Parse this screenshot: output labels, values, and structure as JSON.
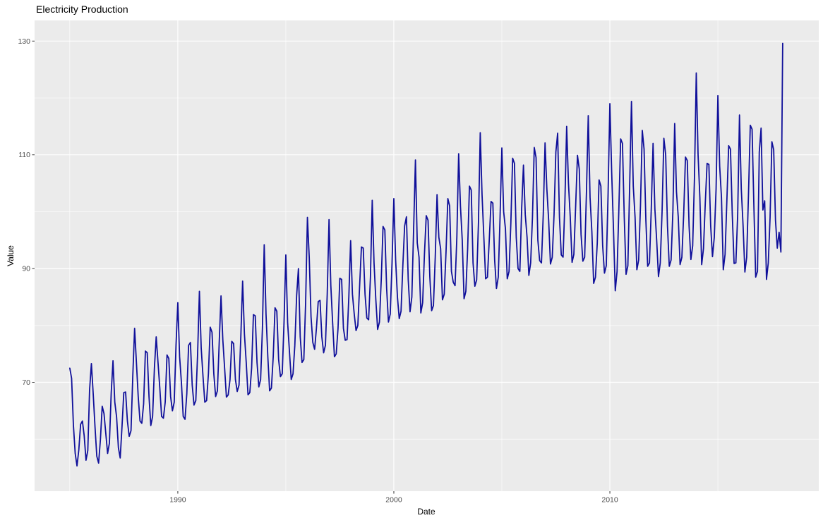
{
  "chart_data": {
    "type": "line",
    "title": "Electricity Production",
    "xlabel": "Date",
    "ylabel": "Value",
    "x_unit": "year (monthly points)",
    "x_start": "1985-01",
    "x_end": "2018-01",
    "xlim": [
      1983.37,
      2019.67
    ],
    "ylim": [
      50.86,
      133.63
    ],
    "x_tick_labels": [
      "1990",
      "2000",
      "2010"
    ],
    "x_major_breaks": [
      1990,
      2000,
      2010
    ],
    "x_minor_breaks": [
      1985,
      1995,
      2005,
      2015
    ],
    "y_tick_labels": [
      "70",
      "90",
      "110",
      "130"
    ],
    "y_major_breaks": [
      70,
      90,
      110,
      130
    ],
    "y_minor_breaks": [
      60,
      80,
      100,
      120
    ],
    "grid": "on",
    "legend": "none",
    "colors": {
      "line": "#10109A",
      "panel_background": "#EBEBEB",
      "gridline": "#FFFFFF",
      "tick_label": "#4D4D4D",
      "tick_mark": "#333333",
      "text": "#000000",
      "figure_background": "#FFFFFF"
    },
    "series": [
      {
        "name": "Value",
        "start_year": 1985,
        "months_per_step": 1,
        "values": [
          72.5,
          70.7,
          62.5,
          57.5,
          55.3,
          58.1,
          62.6,
          63.2,
          60.6,
          56.3,
          58.0,
          68.7,
          73.3,
          68.0,
          62.2,
          57.0,
          55.8,
          59.9,
          65.8,
          64.5,
          61.0,
          57.5,
          59.3,
          68.1,
          73.8,
          66.5,
          63.9,
          58.5,
          56.7,
          62.2,
          68.2,
          68.3,
          63.2,
          60.5,
          61.5,
          71.2,
          79.5,
          73.5,
          67.5,
          63.2,
          62.8,
          66.2,
          75.5,
          75.2,
          67.5,
          62.4,
          64.0,
          72.5,
          78.0,
          73.5,
          69.0,
          64.0,
          63.7,
          66.5,
          74.8,
          74.2,
          67.5,
          65.0,
          66.5,
          76.5,
          84.0,
          74.5,
          70.0,
          64.0,
          63.5,
          68.0,
          76.5,
          77.0,
          69.5,
          66.0,
          66.8,
          75.0,
          86.0,
          76.0,
          71.0,
          66.5,
          66.8,
          71.5,
          79.7,
          78.8,
          71.5,
          67.5,
          68.5,
          77.0,
          85.2,
          77.5,
          72.5,
          67.4,
          67.8,
          70.5,
          77.2,
          76.8,
          70.5,
          68.4,
          69.5,
          78.0,
          87.8,
          78.5,
          73.5,
          67.8,
          68.2,
          72.5,
          81.9,
          81.7,
          73.5,
          69.2,
          70.5,
          79.5,
          94.2,
          82.0,
          74.5,
          68.5,
          69.0,
          74.5,
          83.1,
          82.5,
          74.0,
          71.0,
          71.5,
          80.5,
          92.4,
          80.5,
          75.5,
          70.5,
          71.5,
          76.5,
          85.2,
          90.0,
          78.0,
          73.5,
          74.0,
          84.0,
          99.0,
          92.0,
          81.5,
          77.0,
          75.8,
          79.5,
          84.2,
          84.4,
          78.0,
          75.2,
          76.5,
          85.5,
          98.6,
          87.0,
          80.5,
          74.5,
          75.0,
          79.5,
          88.3,
          88.1,
          79.5,
          77.4,
          77.5,
          85.0,
          94.9,
          85.5,
          82.0,
          79.1,
          80.0,
          87.0,
          93.8,
          93.6,
          85.5,
          81.3,
          81.0,
          88.5,
          102.0,
          91.0,
          84.5,
          79.3,
          80.6,
          88.0,
          97.4,
          96.8,
          86.5,
          80.6,
          82.0,
          91.0,
          102.3,
          91.5,
          85.0,
          81.2,
          82.5,
          90.5,
          97.5,
          99.1,
          88.0,
          82.4,
          85.0,
          97.0,
          109.1,
          94.5,
          92.0,
          82.2,
          84.0,
          92.5,
          99.3,
          98.5,
          88.5,
          82.6,
          83.5,
          92.0,
          103.0,
          95.5,
          93.5,
          84.5,
          85.5,
          93.0,
          102.3,
          101.0,
          89.5,
          87.6,
          87.0,
          95.5,
          110.2,
          101.0,
          95.0,
          84.7,
          86.0,
          93.5,
          104.5,
          103.8,
          91.0,
          86.9,
          88.0,
          98.0,
          113.9,
          103.0,
          95.5,
          88.2,
          88.5,
          95.0,
          101.8,
          101.5,
          91.5,
          86.5,
          88.5,
          99.0,
          111.2,
          100.0,
          97.0,
          88.2,
          89.5,
          98.0,
          109.4,
          108.5,
          95.5,
          90.0,
          89.5,
          100.5,
          108.2,
          99.5,
          95.5,
          88.8,
          91.0,
          99.0,
          111.3,
          109.5,
          95.0,
          91.4,
          91.0,
          99.5,
          112.1,
          104.0,
          98.5,
          90.8,
          92.0,
          99.5,
          110.5,
          113.8,
          99.0,
          92.4,
          92.0,
          101.5,
          115.0,
          105.0,
          99.0,
          91.1,
          92.5,
          101.0,
          109.9,
          107.5,
          96.0,
          91.3,
          92.0,
          103.5,
          116.9,
          102.5,
          96.5,
          87.4,
          88.5,
          94.5,
          105.6,
          104.5,
          94.0,
          89.2,
          90.5,
          103.0,
          119.0,
          107.0,
          97.0,
          86.1,
          89.5,
          100.5,
          112.8,
          112.0,
          99.0,
          89.0,
          90.5,
          104.5,
          119.4,
          104.5,
          99.0,
          89.8,
          91.5,
          101.0,
          114.3,
          111.0,
          98.5,
          90.4,
          91.0,
          100.5,
          112.0,
          100.5,
          95.0,
          88.6,
          91.0,
          100.0,
          112.9,
          110.0,
          97.5,
          90.4,
          91.5,
          100.0,
          115.5,
          103.5,
          99.0,
          90.7,
          92.0,
          99.5,
          109.6,
          109.0,
          97.5,
          91.6,
          94.0,
          106.0,
          124.4,
          110.0,
          102.5,
          90.7,
          93.5,
          101.5,
          108.5,
          108.3,
          97.5,
          92.1,
          95.5,
          104.0,
          120.4,
          108.0,
          102.5,
          89.8,
          92.5,
          102.0,
          111.6,
          111.0,
          99.5,
          90.9,
          91.0,
          99.5,
          117.0,
          104.0,
          97.5,
          89.4,
          92.0,
          103.0,
          115.2,
          114.5,
          101.0,
          88.5,
          89.5,
          110.5,
          114.7,
          100.3,
          101.9,
          88.1,
          91.0,
          99.0,
          112.3,
          110.9,
          98.5,
          93.6,
          96.4,
          92.9,
          129.6
        ]
      }
    ]
  }
}
